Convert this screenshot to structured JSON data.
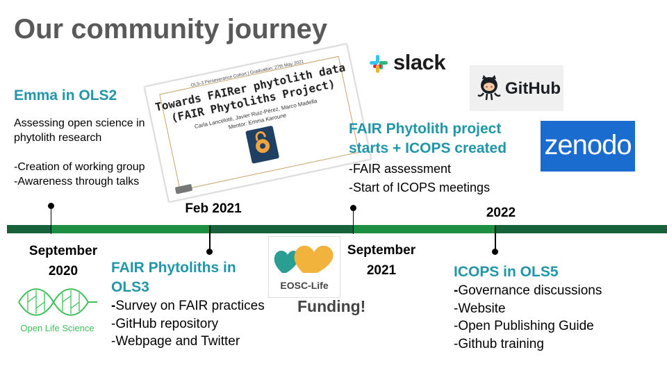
{
  "title": "Our community journey",
  "colors": {
    "teal": "#2196a8",
    "bar_dark": "#17623a",
    "bar_light": "#1c9040",
    "title_gray": "#595959"
  },
  "emma": {
    "heading": "Emma in OLS2",
    "desc": [
      "Assessing open science in",
      "phytolith research"
    ],
    "items": [
      "-Creation of working group",
      "-Awareness through talks"
    ]
  },
  "poster": {
    "header": "OLS-3 Perseverance Cohort | Graduation: 27th May 2021",
    "title_line1": "Towards FAIRer phytolith data",
    "title_line2": "(FAIR Phytoliths Project)",
    "authors": "Carla Lancelotti, Javier Ruiz-Pérez, Marco Madella",
    "mentor": "Mentor: Emma Karoune"
  },
  "fair_phytolith": {
    "heading_line1": "FAIR Phytolith project",
    "heading_line2": "starts + ICOPS created",
    "items": [
      "-FAIR assessment",
      "-Start of ICOPS meetings"
    ]
  },
  "logos": {
    "slack": "slack",
    "github": "GitHub",
    "zenodo": "zenodo",
    "eosc": "EOSC-Life",
    "ols": "Open Life Science"
  },
  "dates": {
    "sep2020_line1": "September",
    "sep2020_line2": "2020",
    "feb2021": "Feb 2021",
    "sep2021_line1": "September",
    "sep2021_line2": "2021",
    "y2022": "2022"
  },
  "ols3": {
    "heading_line1": "FAIR Phytoliths in",
    "heading_line2": "OLS3",
    "items": [
      "Survey on FAIR practices",
      "-GitHub repository",
      "-Webpage and Twitter"
    ],
    "first_dash": "-"
  },
  "funding": "Funding!",
  "icops": {
    "heading": "ICOPS in OLS5",
    "first_dash": "-",
    "items": [
      "Governance discussions",
      "-Website",
      "-Open Publishing Guide",
      "-Github training"
    ]
  }
}
